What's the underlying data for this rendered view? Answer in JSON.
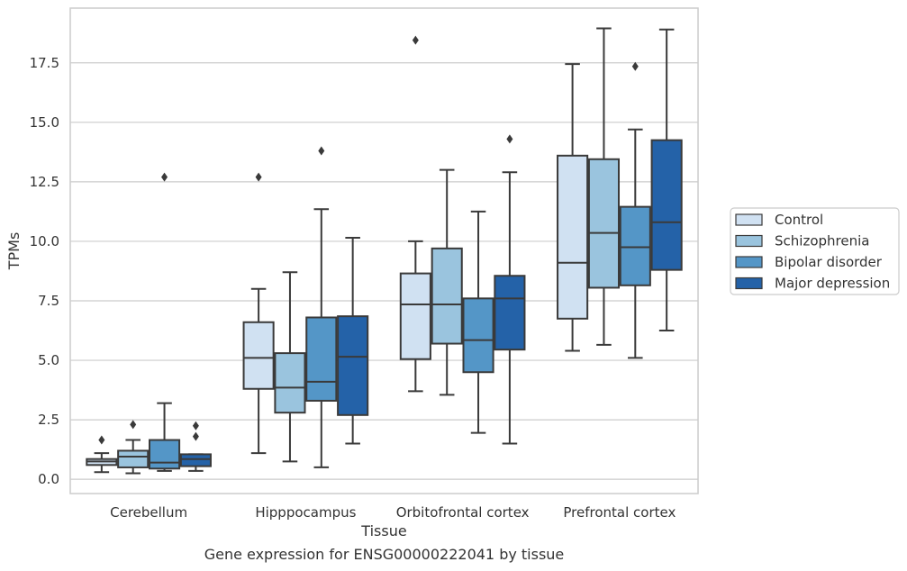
{
  "chart_data": {
    "type": "box",
    "title": "",
    "xlabel": "Tissue",
    "ylabel": "TPMs",
    "caption": "Gene expression for ENSG00000222041 by tissue",
    "ylim": [
      -0.6,
      19.8
    ],
    "yticks": [
      0.0,
      2.5,
      5.0,
      7.5,
      10.0,
      12.5,
      15.0,
      17.5
    ],
    "ytick_labels": [
      "0.0",
      "2.5",
      "5.0",
      "7.5",
      "10.0",
      "12.5",
      "15.0",
      "17.5"
    ],
    "grid": true,
    "legend_position": "right",
    "categories": [
      "Cerebellum",
      "Hipppocampus",
      "Orbitofrontal cortex",
      "Prefrontal cortex"
    ],
    "series": [
      {
        "name": "Control",
        "color": "#d0e1f2",
        "boxes": [
          {
            "whisker_low": 0.3,
            "q1": 0.6,
            "median": 0.75,
            "q3": 0.85,
            "whisker_high": 1.1,
            "outliers": [
              1.65
            ]
          },
          {
            "whisker_low": 1.1,
            "q1": 3.8,
            "median": 5.1,
            "q3": 6.6,
            "whisker_high": 8.0,
            "outliers": [
              12.7
            ]
          },
          {
            "whisker_low": 3.7,
            "q1": 5.05,
            "median": 7.35,
            "q3": 8.65,
            "whisker_high": 10.0,
            "outliers": [
              18.45
            ]
          },
          {
            "whisker_low": 5.4,
            "q1": 6.75,
            "median": 9.1,
            "q3": 13.6,
            "whisker_high": 17.45,
            "outliers": []
          }
        ]
      },
      {
        "name": "Schizophrenia",
        "color": "#9ac4de",
        "boxes": [
          {
            "whisker_low": 0.25,
            "q1": 0.5,
            "median": 0.95,
            "q3": 1.2,
            "whisker_high": 1.65,
            "outliers": [
              2.3
            ]
          },
          {
            "whisker_low": 0.75,
            "q1": 2.8,
            "median": 3.85,
            "q3": 5.3,
            "whisker_high": 8.7,
            "outliers": []
          },
          {
            "whisker_low": 3.55,
            "q1": 5.7,
            "median": 7.35,
            "q3": 9.7,
            "whisker_high": 13.0,
            "outliers": []
          },
          {
            "whisker_low": 5.65,
            "q1": 8.05,
            "median": 10.35,
            "q3": 13.45,
            "whisker_high": 18.95,
            "outliers": []
          }
        ]
      },
      {
        "name": "Bipolar disorder",
        "color": "#5496c7",
        "boxes": [
          {
            "whisker_low": 0.35,
            "q1": 0.45,
            "median": 0.7,
            "q3": 1.65,
            "whisker_high": 3.2,
            "outliers": [
              12.7
            ]
          },
          {
            "whisker_low": 0.5,
            "q1": 3.3,
            "median": 4.1,
            "q3": 6.8,
            "whisker_high": 11.35,
            "outliers": [
              13.8
            ]
          },
          {
            "whisker_low": 1.95,
            "q1": 4.5,
            "median": 5.85,
            "q3": 7.6,
            "whisker_high": 11.25,
            "outliers": []
          },
          {
            "whisker_low": 5.1,
            "q1": 8.15,
            "median": 9.75,
            "q3": 11.45,
            "whisker_high": 14.7,
            "outliers": [
              17.35
            ]
          }
        ]
      },
      {
        "name": "Major depression",
        "color": "#2462a8",
        "boxes": [
          {
            "whisker_low": 0.35,
            "q1": 0.55,
            "median": 0.85,
            "q3": 1.05,
            "whisker_high": 1.05,
            "outliers": [
              1.8,
              2.25
            ]
          },
          {
            "whisker_low": 1.5,
            "q1": 2.7,
            "median": 5.15,
            "q3": 6.85,
            "whisker_high": 10.15,
            "outliers": []
          },
          {
            "whisker_low": 1.5,
            "q1": 5.45,
            "median": 7.6,
            "q3": 8.55,
            "whisker_high": 12.9,
            "outliers": [
              14.3
            ]
          },
          {
            "whisker_low": 6.25,
            "q1": 8.8,
            "median": 10.8,
            "q3": 14.25,
            "whisker_high": 18.9,
            "outliers": []
          }
        ]
      }
    ]
  }
}
